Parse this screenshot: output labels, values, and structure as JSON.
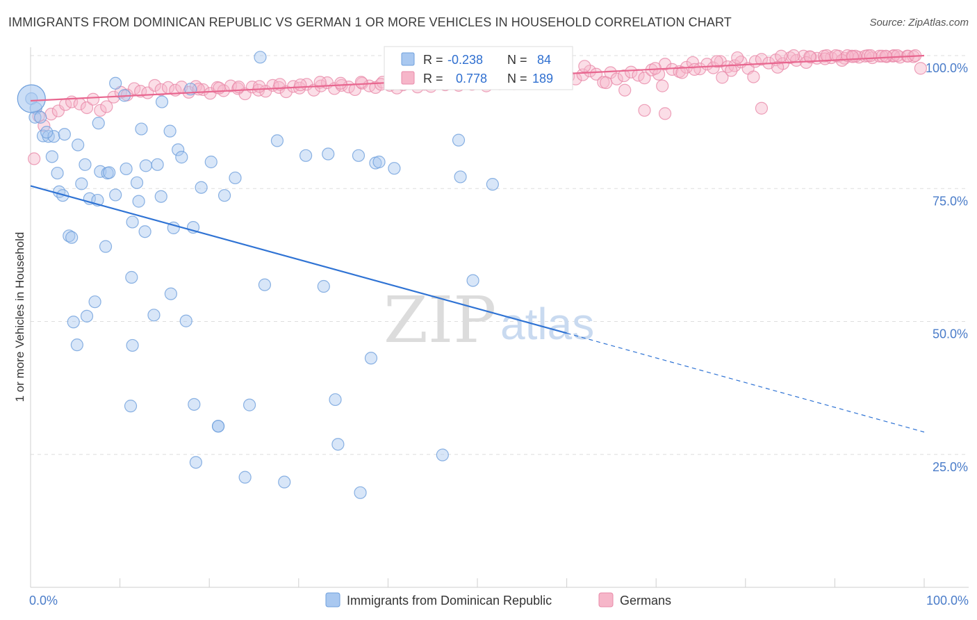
{
  "title": "IMMIGRANTS FROM DOMINICAN REPUBLIC VS GERMAN 1 OR MORE VEHICLES IN HOUSEHOLD CORRELATION CHART",
  "source": "Source: ZipAtlas.com",
  "watermark": {
    "zip": "ZIP",
    "atlas": "atlas"
  },
  "colors": {
    "blue_fill": "#a9c8f0",
    "blue_stroke": "#6e9fdc",
    "blue_line": "#2f73d4",
    "pink_fill": "#f6b6c9",
    "pink_stroke": "#e88aa9",
    "pink_line": "#e8668f",
    "grid": "#dddddd",
    "tick_text": "#4a7cc9"
  },
  "legend_box": {
    "series": [
      {
        "r_label": "R =",
        "r_value": "-0.238",
        "n_label": "N =",
        "n_value": "84"
      },
      {
        "r_label": "R =",
        "r_value": "0.778",
        "n_label": "N =",
        "n_value": "189"
      }
    ]
  },
  "chart_data": {
    "type": "scatter",
    "title": "IMMIGRANTS FROM DOMINICAN REPUBLIC VS GERMAN 1 OR MORE VEHICLES IN HOUSEHOLD CORRELATION CHART",
    "xlabel": "",
    "ylabel": "1 or more Vehicles in Household",
    "xlim": [
      0,
      100
    ],
    "ylim": [
      0,
      100
    ],
    "x_tick_labels": [
      "0.0%",
      "100.0%"
    ],
    "y_ticks": [
      25,
      50,
      75,
      100
    ],
    "y_tick_labels": [
      "25.0%",
      "50.0%",
      "75.0%",
      "100.0%"
    ],
    "legend": [
      "Immigrants from Dominican Republic",
      "Germans"
    ],
    "series": [
      {
        "name": "Immigrants from Dominican Republic",
        "color": "blue",
        "trend": {
          "x0": 0,
          "y0": 75.5,
          "x1": 60,
          "y1": 47.8,
          "dash_to_x": 100,
          "dash_to_y": 29.2
        },
        "points": [
          [
            0.1,
            91.9
          ],
          [
            0.6,
            90.1
          ],
          [
            0.5,
            88.4
          ],
          [
            1.1,
            88.4
          ],
          [
            1.4,
            84.9
          ],
          [
            2.0,
            84.8
          ],
          [
            2.6,
            84.8
          ],
          [
            3.8,
            85.2
          ],
          [
            1.8,
            85.6
          ],
          [
            2.4,
            81.0
          ],
          [
            5.3,
            83.2
          ],
          [
            7.6,
            87.3
          ],
          [
            9.5,
            94.8
          ],
          [
            10.5,
            92.5
          ],
          [
            12.4,
            86.2
          ],
          [
            14.7,
            91.3
          ],
          [
            15.6,
            85.8
          ],
          [
            16.5,
            82.3
          ],
          [
            3.0,
            77.9
          ],
          [
            6.1,
            79.5
          ],
          [
            7.8,
            78.2
          ],
          [
            8.6,
            77.9
          ],
          [
            8.8,
            78.0
          ],
          [
            10.7,
            78.7
          ],
          [
            11.9,
            76.1
          ],
          [
            12.9,
            79.3
          ],
          [
            14.2,
            79.5
          ],
          [
            16.9,
            80.9
          ],
          [
            5.7,
            75.9
          ],
          [
            3.2,
            74.4
          ],
          [
            3.6,
            73.7
          ],
          [
            6.6,
            73.1
          ],
          [
            7.5,
            72.8
          ],
          [
            9.5,
            73.8
          ],
          [
            12.1,
            72.6
          ],
          [
            14.6,
            73.5
          ],
          [
            19.1,
            75.2
          ],
          [
            21.7,
            73.7
          ],
          [
            22.9,
            77.0
          ],
          [
            20.2,
            80.0
          ],
          [
            17.9,
            93.7
          ],
          [
            25.7,
            99.7
          ],
          [
            27.6,
            84.0
          ],
          [
            30.8,
            81.2
          ],
          [
            33.3,
            81.5
          ],
          [
            36.7,
            81.2
          ],
          [
            38.6,
            79.8
          ],
          [
            39.0,
            80.0
          ],
          [
            40.7,
            78.8
          ],
          [
            47.9,
            84.1
          ],
          [
            48.1,
            77.2
          ],
          [
            51.7,
            75.8
          ],
          [
            4.3,
            66.1
          ],
          [
            4.6,
            65.8
          ],
          [
            8.4,
            64.1
          ],
          [
            11.4,
            68.7
          ],
          [
            12.8,
            66.9
          ],
          [
            16.0,
            67.6
          ],
          [
            18.2,
            67.7
          ],
          [
            49.5,
            57.7
          ],
          [
            11.3,
            58.3
          ],
          [
            15.7,
            55.2
          ],
          [
            26.2,
            56.9
          ],
          [
            32.8,
            56.6
          ],
          [
            7.2,
            53.7
          ],
          [
            6.3,
            51.0
          ],
          [
            4.8,
            49.9
          ],
          [
            13.8,
            51.2
          ],
          [
            17.4,
            50.1
          ],
          [
            5.2,
            45.6
          ],
          [
            11.4,
            45.5
          ],
          [
            38.1,
            43.1
          ],
          [
            11.2,
            34.1
          ],
          [
            18.3,
            34.4
          ],
          [
            24.5,
            34.3
          ],
          [
            34.1,
            35.3
          ],
          [
            21.0,
            30.3
          ],
          [
            34.4,
            26.9
          ],
          [
            46.1,
            24.9
          ],
          [
            18.5,
            23.5
          ],
          [
            24.0,
            20.7
          ],
          [
            28.4,
            19.8
          ],
          [
            36.9,
            17.8
          ],
          [
            21.0,
            30.3
          ]
        ]
      },
      {
        "name": "Germans",
        "color": "pink",
        "trend": {
          "x0": 0,
          "y0": 91.5,
          "x1": 100,
          "y1": 100.0
        },
        "points": [
          [
            0.4,
            80.6
          ],
          [
            0.9,
            88.6
          ],
          [
            1.5,
            86.8
          ],
          [
            2.3,
            89.0
          ],
          [
            3.1,
            89.6
          ],
          [
            3.9,
            90.8
          ],
          [
            4.6,
            91.3
          ],
          [
            5.5,
            90.9
          ],
          [
            6.3,
            90.2
          ],
          [
            7.0,
            91.8
          ],
          [
            7.8,
            89.7
          ],
          [
            8.5,
            90.4
          ],
          [
            9.3,
            92.2
          ],
          [
            10.1,
            93.1
          ],
          [
            10.8,
            92.6
          ],
          [
            11.6,
            93.8
          ],
          [
            12.3,
            93.3
          ],
          [
            13.1,
            93.0
          ],
          [
            13.9,
            94.4
          ],
          [
            14.6,
            93.6
          ],
          [
            15.4,
            94.0
          ],
          [
            16.2,
            93.5
          ],
          [
            16.9,
            94.1
          ],
          [
            17.7,
            93.1
          ],
          [
            18.5,
            94.2
          ],
          [
            19.3,
            93.6
          ],
          [
            20.1,
            92.9
          ],
          [
            20.9,
            94.0
          ],
          [
            21.6,
            93.4
          ],
          [
            22.4,
            94.3
          ],
          [
            23.2,
            93.8
          ],
          [
            24.0,
            92.8
          ],
          [
            24.8,
            94.1
          ],
          [
            25.5,
            93.5
          ],
          [
            26.3,
            93.3
          ],
          [
            27.1,
            94.4
          ],
          [
            27.8,
            94.0
          ],
          [
            28.6,
            93.2
          ],
          [
            29.4,
            94.2
          ],
          [
            30.1,
            93.9
          ],
          [
            30.9,
            94.6
          ],
          [
            31.7,
            93.5
          ],
          [
            32.5,
            94.3
          ],
          [
            33.2,
            94.9
          ],
          [
            34.0,
            93.8
          ],
          [
            34.8,
            94.4
          ],
          [
            35.6,
            94.1
          ],
          [
            36.3,
            93.6
          ],
          [
            37.1,
            94.8
          ],
          [
            37.9,
            94.3
          ],
          [
            38.6,
            94.0
          ],
          [
            39.4,
            95.0
          ],
          [
            40.2,
            94.4
          ],
          [
            41.0,
            93.9
          ],
          [
            41.7,
            94.5
          ],
          [
            42.5,
            94.8
          ],
          [
            43.3,
            94.1
          ],
          [
            44.1,
            94.6
          ],
          [
            44.8,
            94.2
          ],
          [
            45.6,
            95.2
          ],
          [
            46.4,
            94.5
          ],
          [
            47.1,
            94.9
          ],
          [
            47.9,
            94.4
          ],
          [
            48.7,
            95.1
          ],
          [
            49.4,
            94.6
          ],
          [
            50.2,
            94.9
          ],
          [
            51.0,
            94.3
          ],
          [
            51.8,
            95.0
          ],
          [
            52.5,
            94.7
          ],
          [
            53.3,
            95.3
          ],
          [
            54.1,
            94.7
          ],
          [
            54.9,
            95.1
          ],
          [
            55.6,
            94.8
          ],
          [
            56.4,
            95.5
          ],
          [
            57.2,
            94.9
          ],
          [
            57.9,
            95.4
          ],
          [
            58.7,
            95.8
          ],
          [
            59.5,
            95.2
          ],
          [
            60.2,
            96.1
          ],
          [
            61.0,
            95.6
          ],
          [
            61.8,
            96.4
          ],
          [
            62.6,
            97.1
          ],
          [
            63.3,
            96.5
          ],
          [
            64.1,
            95.0
          ],
          [
            64.9,
            96.8
          ],
          [
            65.6,
            95.6
          ],
          [
            66.4,
            96.2
          ],
          [
            67.2,
            96.9
          ],
          [
            68.0,
            96.3
          ],
          [
            68.7,
            95.8
          ],
          [
            69.5,
            97.3
          ],
          [
            70.3,
            96.5
          ],
          [
            71.0,
            98.4
          ],
          [
            71.8,
            97.4
          ],
          [
            72.6,
            97.0
          ],
          [
            73.4,
            97.8
          ],
          [
            74.1,
            98.7
          ],
          [
            74.9,
            97.5
          ],
          [
            75.7,
            98.4
          ],
          [
            76.4,
            97.7
          ],
          [
            77.2,
            98.9
          ],
          [
            78.0,
            97.9
          ],
          [
            78.8,
            98.1
          ],
          [
            79.5,
            98.8
          ],
          [
            80.3,
            97.6
          ],
          [
            81.1,
            98.9
          ],
          [
            81.8,
            99.3
          ],
          [
            82.6,
            98.6
          ],
          [
            83.4,
            99.2
          ],
          [
            84.2,
            98.5
          ],
          [
            85.0,
            99.6
          ],
          [
            85.7,
            99.1
          ],
          [
            86.5,
            99.9
          ],
          [
            87.3,
            99.7
          ],
          [
            88.0,
            99.5
          ],
          [
            88.8,
            99.9
          ],
          [
            89.6,
            99.6
          ],
          [
            90.4,
            99.9
          ],
          [
            91.1,
            99.5
          ],
          [
            91.9,
            99.9
          ],
          [
            92.7,
            99.7
          ],
          [
            93.4,
            99.9
          ],
          [
            94.2,
            99.6
          ],
          [
            95.0,
            99.9
          ],
          [
            95.8,
            99.8
          ],
          [
            96.5,
            99.9
          ],
          [
            97.3,
            99.7
          ],
          [
            98.1,
            99.9
          ],
          [
            98.8,
            99.8
          ],
          [
            99.6,
            97.6
          ],
          [
            68.7,
            89.7
          ],
          [
            71.0,
            89.1
          ],
          [
            81.8,
            90.1
          ],
          [
            70.7,
            94.3
          ],
          [
            77.4,
            95.9
          ],
          [
            69.9,
            97.6
          ],
          [
            66.5,
            93.5
          ],
          [
            64.4,
            94.9
          ],
          [
            72.9,
            96.8
          ],
          [
            78.4,
            97.2
          ],
          [
            80.9,
            96.0
          ],
          [
            83.6,
            97.8
          ],
          [
            86.8,
            98.7
          ],
          [
            88.9,
            99.4
          ],
          [
            90.8,
            99.1
          ],
          [
            92.3,
            99.9
          ],
          [
            93.7,
            100.0
          ],
          [
            95.3,
            99.9
          ],
          [
            96.6,
            100.0
          ],
          [
            74.3,
            97.4
          ],
          [
            76.8,
            98.9
          ],
          [
            79.1,
            99.6
          ],
          [
            84.0,
            99.9
          ],
          [
            85.4,
            100.0
          ],
          [
            87.2,
            99.8
          ],
          [
            89.1,
            100.0
          ],
          [
            90.1,
            100.0
          ],
          [
            91.4,
            100.0
          ],
          [
            92.0,
            99.8
          ],
          [
            94.0,
            100.0
          ],
          [
            95.7,
            99.9
          ],
          [
            97.0,
            100.0
          ],
          [
            98.2,
            99.9
          ],
          [
            99.0,
            100.0
          ],
          [
            62.0,
            98.0
          ],
          [
            59.8,
            97.8
          ],
          [
            57.6,
            96.8
          ],
          [
            55.1,
            96.2
          ],
          [
            52.9,
            95.7
          ],
          [
            50.6,
            95.6
          ],
          [
            48.3,
            95.4
          ],
          [
            46.1,
            95.0
          ],
          [
            43.8,
            94.9
          ],
          [
            41.5,
            95.3
          ],
          [
            39.2,
            94.6
          ],
          [
            37.0,
            95.0
          ],
          [
            34.7,
            94.8
          ],
          [
            32.4,
            95.0
          ],
          [
            30.2,
            94.5
          ],
          [
            27.9,
            94.6
          ],
          [
            25.6,
            94.2
          ],
          [
            23.3,
            94.1
          ],
          [
            21.1,
            93.9
          ],
          [
            18.8,
            93.7
          ]
        ]
      }
    ]
  }
}
